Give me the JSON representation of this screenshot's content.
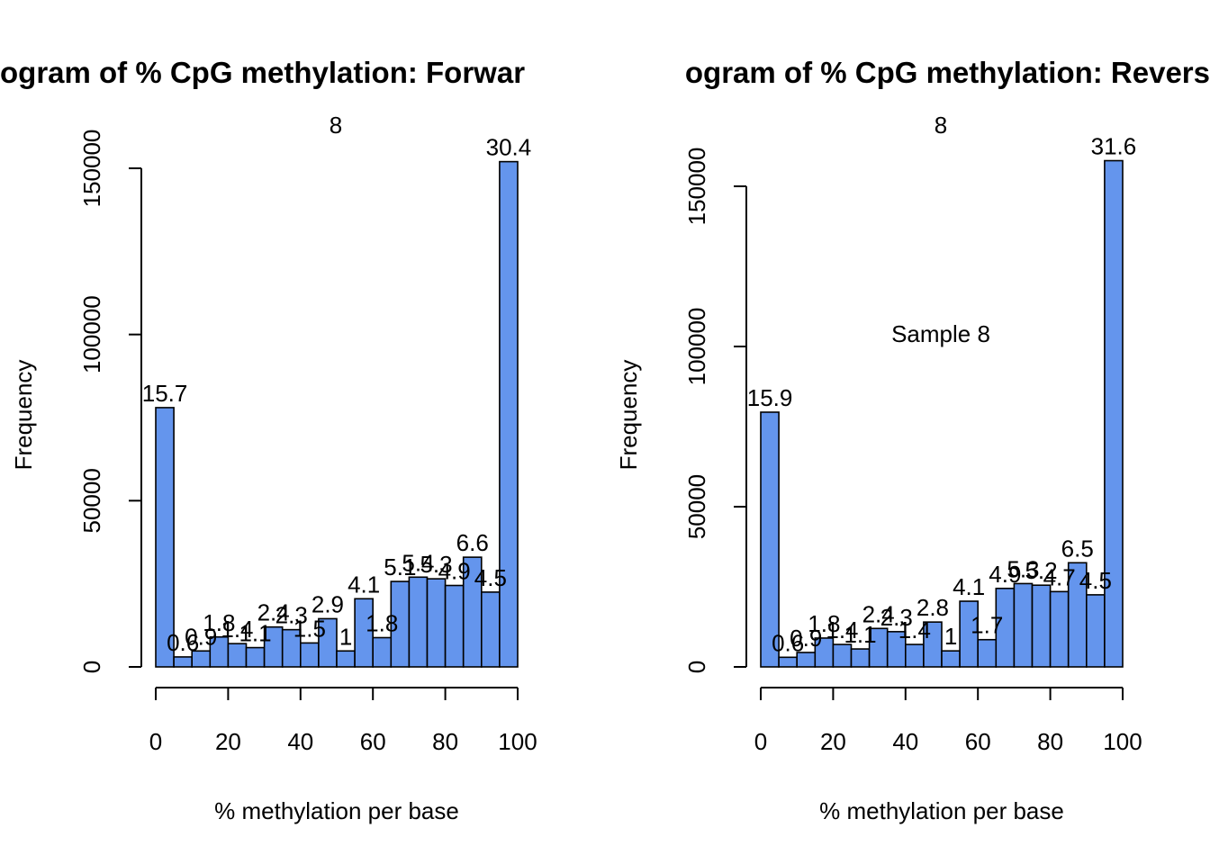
{
  "chart_data": [
    {
      "type": "bar",
      "title": "ogram of % CpG methylation: Forwar",
      "subtitle": "8",
      "annotation": "",
      "xlabel": "% methylation per base",
      "ylabel": "Frequency",
      "x_ticks": [
        "0",
        "20",
        "40",
        "60",
        "80",
        "100"
      ],
      "y_ticks": [
        "0",
        "50000",
        "100000",
        "150000"
      ],
      "xlim": [
        0,
        100
      ],
      "ylim": [
        0,
        150000
      ],
      "bin_edges": [
        0,
        5,
        10,
        15,
        20,
        25,
        30,
        35,
        40,
        45,
        50,
        55,
        60,
        65,
        70,
        75,
        80,
        85,
        90,
        95,
        100
      ],
      "values": [
        78000,
        3000,
        4800,
        9000,
        7000,
        5800,
        12000,
        11200,
        7200,
        14500,
        4800,
        20500,
        8800,
        25700,
        27000,
        26500,
        24500,
        33000,
        22500,
        152000
      ],
      "labels": [
        "15.7",
        "0.6",
        "0.9",
        "1.8",
        "1.4",
        "1.1",
        "2.4",
        "2.3",
        "1.5",
        "2.9",
        "1",
        "4.1",
        "1.8",
        "5.1",
        "5.4",
        "5.3",
        "4.9",
        "6.6",
        "4.5",
        "30.4"
      ],
      "colors": {
        "bar": "#6495ED"
      }
    },
    {
      "type": "bar",
      "title": "ogram of % CpG methylation: Revers",
      "subtitle": "8",
      "annotation": "Sample 8",
      "xlabel": "% methylation per base",
      "ylabel": "Frequency",
      "x_ticks": [
        "0",
        "20",
        "40",
        "60",
        "80",
        "100"
      ],
      "y_ticks": [
        "0",
        "50000",
        "100000",
        "150000"
      ],
      "xlim": [
        0,
        100
      ],
      "ylim": [
        0,
        150000
      ],
      "bin_edges": [
        0,
        5,
        10,
        15,
        20,
        25,
        30,
        35,
        40,
        45,
        50,
        55,
        60,
        65,
        70,
        75,
        80,
        85,
        90,
        95,
        100
      ],
      "values": [
        79500,
        3000,
        4500,
        9000,
        7000,
        5600,
        12000,
        11000,
        7000,
        14000,
        5000,
        20500,
        8500,
        24500,
        26000,
        25500,
        23500,
        32500,
        22500,
        158000
      ],
      "labels": [
        "15.9",
        "0.6",
        "0.9",
        "1.8",
        "1.4",
        "1.1",
        "2.4",
        "2.3",
        "1.4",
        "2.8",
        "1",
        "4.1",
        "1.7",
        "4.9",
        "5.3",
        "5.2",
        "4.7",
        "6.5",
        "4.5",
        "31.6"
      ],
      "colors": {
        "bar": "#6495ED"
      }
    }
  ]
}
